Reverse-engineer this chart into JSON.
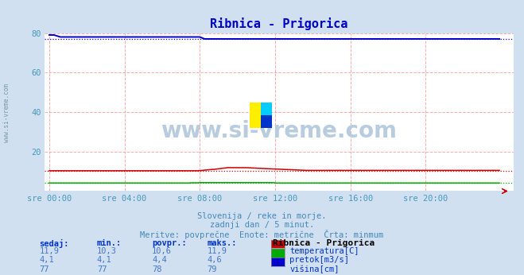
{
  "title": "Ribnica - Prigorica",
  "title_color": "#0000cc",
  "bg_color": "#d0e0f0",
  "plot_bg_color": "#ffffff",
  "grid_color": "#ffaaaa",
  "tick_color": "#4499bb",
  "watermark_text": "www.si-vreme.com",
  "watermark_color": "#b8cce0",
  "sidebar_text": "www.si-vreme.com",
  "sidebar_color": "#7799aa",
  "xlabel_ticks": [
    "sre 00:00",
    "sre 04:00",
    "sre 08:00",
    "sre 12:00",
    "sre 16:00",
    "sre 20:00"
  ],
  "xtick_positions": [
    0,
    48,
    96,
    144,
    192,
    240
  ],
  "ylim": [
    0,
    80
  ],
  "yticks": [
    20,
    40,
    60,
    80
  ],
  "total_points": 288,
  "subtitle_lines": [
    "Slovenija / reke in morje.",
    "zadnji dan / 5 minut.",
    "Meritve: povprečne  Enote: metrične  Črta: minmum"
  ],
  "subtitle_color": "#4488bb",
  "table_headers": [
    "sedaj:",
    "min.:",
    "povpr.:",
    "maks.:"
  ],
  "table_header_color": "#0033cc",
  "table_values": [
    [
      "11,9",
      "10,3",
      "10,6",
      "11,9"
    ],
    [
      "4,1",
      "4,1",
      "4,4",
      "4,6"
    ],
    [
      "77",
      "77",
      "78",
      "79"
    ]
  ],
  "table_value_color": "#4477cc",
  "legend_title": "Ribnica - Prigorica",
  "legend_items": [
    {
      "label": "temperatura[C]",
      "color": "#cc0000"
    },
    {
      "label": "pretok[m3/s]",
      "color": "#00aa00"
    },
    {
      "label": "višina[cm]",
      "color": "#0000cc"
    }
  ],
  "temp_color": "#cc0000",
  "flow_color": "#00aa00",
  "height_color": "#0000cc",
  "arrow_color": "#cc0000",
  "logo_yellow": "#ffee00",
  "logo_cyan": "#00ccff",
  "logo_blue": "#0033cc"
}
